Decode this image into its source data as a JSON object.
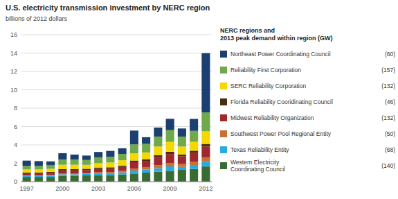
{
  "chart_data": {
    "type": "bar",
    "stacked": true,
    "title": "U.S. electricity transmission investment by NERC region",
    "subtitle": "billions of 2012 dollars",
    "legend_title": "NERC regions and\n2013 peak demand within region (GW)",
    "legend": "right",
    "grid": true,
    "categories": [
      "1997",
      null,
      null,
      "2000",
      null,
      null,
      "2003",
      null,
      null,
      "2006",
      null,
      null,
      "2009",
      null,
      null,
      "2012"
    ],
    "ylim": [
      0,
      16
    ],
    "yticks": [
      0,
      2,
      4,
      6,
      8,
      10,
      12,
      14,
      16
    ],
    "series": [
      {
        "name": "Western Electricity\nCoordinating Council",
        "peak_demand": "(140)",
        "color": "#3a6b35",
        "values": [
          0.52,
          0.52,
          0.52,
          0.62,
          0.62,
          0.68,
          0.72,
          0.72,
          0.78,
          0.88,
          0.98,
          1.08,
          1.18,
          1.28,
          1.38,
          1.65
        ]
      },
      {
        "name": "Texas Reliability Entity",
        "peak_demand": "(68)",
        "color": "#29abe2",
        "values": [
          0.1,
          0.1,
          0.13,
          0.18,
          0.18,
          0.16,
          0.18,
          0.2,
          0.23,
          0.33,
          0.33,
          0.38,
          0.48,
          0.33,
          0.43,
          0.52
        ]
      },
      {
        "name": "Southwest Power Pool Regional Entity",
        "peak_demand": "(50)",
        "color": "#c87137",
        "values": [
          0.07,
          0.07,
          0.09,
          0.1,
          0.1,
          0.1,
          0.13,
          0.13,
          0.18,
          0.23,
          0.28,
          0.33,
          0.38,
          0.33,
          0.38,
          0.48
        ]
      },
      {
        "name": "Midwest Reliability Organization",
        "peak_demand": "(132)",
        "color": "#a0272d",
        "values": [
          0.22,
          0.22,
          0.22,
          0.32,
          0.32,
          0.32,
          0.37,
          0.37,
          0.42,
          0.67,
          0.67,
          0.87,
          0.97,
          0.82,
          0.97,
          1.17
        ]
      },
      {
        "name": "Florida Reliability Cooridinating Council",
        "peak_demand": "(46)",
        "color": "#4a2c10",
        "values": [
          0.09,
          0.09,
          0.11,
          0.14,
          0.14,
          0.14,
          0.14,
          0.14,
          0.14,
          0.19,
          0.19,
          0.24,
          0.24,
          0.19,
          0.21,
          0.29
        ]
      },
      {
        "name": "SERC Reliability Corporation",
        "peak_demand": "(132)",
        "color": "#f5d800",
        "values": [
          0.33,
          0.33,
          0.33,
          0.48,
          0.48,
          0.43,
          0.48,
          0.53,
          0.58,
          0.78,
          0.73,
          0.93,
          1.08,
          0.88,
          0.98,
          1.38
        ]
      },
      {
        "name": "Reliability First Corporation",
        "peak_demand": "(157)",
        "color": "#70a84c",
        "values": [
          0.38,
          0.38,
          0.38,
          0.58,
          0.58,
          0.53,
          0.63,
          0.63,
          0.68,
          0.98,
          0.93,
          1.08,
          1.28,
          1.08,
          1.18,
          2.05
        ]
      },
      {
        "name": "Northeast Power Coordinating Council",
        "peak_demand": "(60)",
        "color": "#1b3f6e",
        "values": [
          0.58,
          0.53,
          0.43,
          0.68,
          0.53,
          0.48,
          0.58,
          0.63,
          0.63,
          1.5,
          0.73,
          0.98,
          1.23,
          0.88,
          1.3,
          6.45
        ]
      }
    ]
  }
}
